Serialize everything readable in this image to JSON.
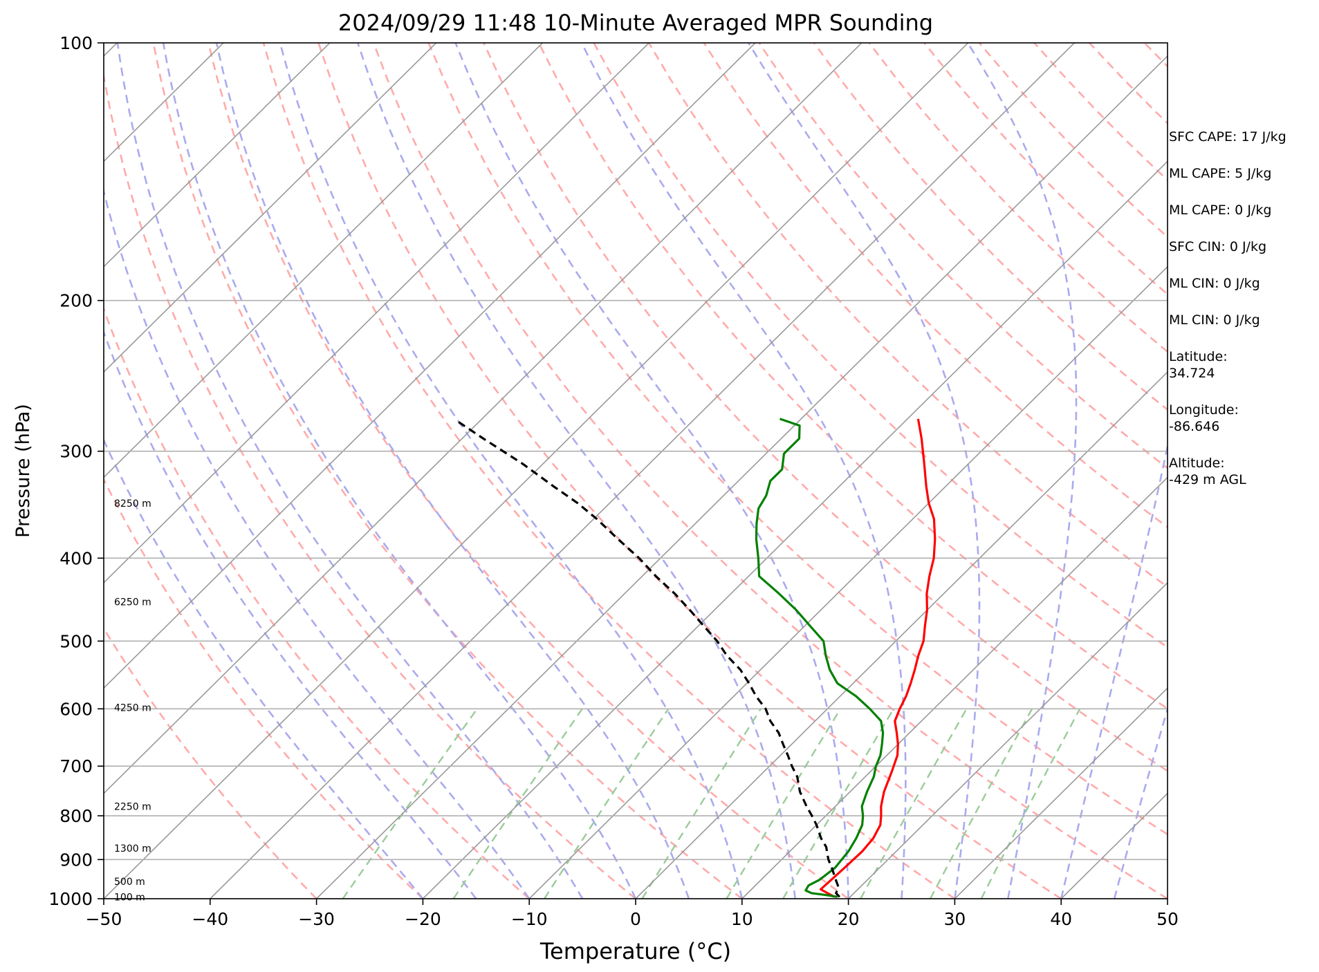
{
  "chart_data": {
    "type": "line",
    "title": "2024/09/29 11:48 10-Minute Averaged MPR Sounding",
    "xlabel": "Temperature (°C)",
    "ylabel": "Pressure (hPa)",
    "xlim": [
      -50,
      50
    ],
    "ylim": [
      1000,
      100
    ],
    "y_scale": "log",
    "skew_t": true,
    "grid": true,
    "x_ticks": [
      -50,
      -40,
      -30,
      -20,
      -10,
      0,
      10,
      20,
      30,
      40,
      50
    ],
    "y_ticks": [
      100,
      200,
      300,
      400,
      500,
      600,
      700,
      800,
      900,
      1000
    ],
    "x_tick_labels": [
      "−50",
      "−40",
      "−30",
      "−20",
      "−10",
      "0",
      "10",
      "20",
      "30",
      "40",
      "50"
    ],
    "y_tick_labels": [
      "100",
      "200",
      "300",
      "400",
      "500",
      "600",
      "700",
      "800",
      "900",
      "1000"
    ],
    "height_labels": [
      {
        "text": "8250 m",
        "p": 345
      },
      {
        "text": "6250 m",
        "p": 450
      },
      {
        "text": "4250 m",
        "p": 598
      },
      {
        "text": "2250 m",
        "p": 780
      },
      {
        "text": "1300 m",
        "p": 873
      },
      {
        "text": "500 m",
        "p": 955
      },
      {
        "text": "100 m",
        "p": 995
      }
    ],
    "colors": {
      "temperature": "#ff0000",
      "dewpoint": "#008000",
      "parcel": "#000000",
      "dry_adiabats": "#ffaaaa",
      "moist_adiabats": "#aaaaee",
      "mixing_ratio": "#99cc99",
      "isotherms": "#999999"
    },
    "series": [
      {
        "role": "temperature",
        "values": [
          [
            18.5,
            995
          ],
          [
            17.5,
            985
          ],
          [
            16.5,
            975
          ],
          [
            16.6,
            950
          ],
          [
            16.7,
            920
          ],
          [
            16.8,
            880
          ],
          [
            16.6,
            850
          ],
          [
            16.0,
            820
          ],
          [
            15.2,
            800
          ],
          [
            14.3,
            780
          ],
          [
            13.2,
            750
          ],
          [
            12.0,
            710
          ],
          [
            11.0,
            680
          ],
          [
            10.0,
            660
          ],
          [
            8.8,
            640
          ],
          [
            7.5,
            620
          ],
          [
            6.8,
            600
          ],
          [
            6.2,
            580
          ],
          [
            5.4,
            560
          ],
          [
            4.5,
            540
          ],
          [
            3.5,
            520
          ],
          [
            2.6,
            500
          ],
          [
            1.3,
            480
          ],
          [
            0.0,
            460
          ],
          [
            -1.6,
            440
          ],
          [
            -3.0,
            420
          ],
          [
            -4.3,
            400
          ],
          [
            -6.0,
            380
          ],
          [
            -8.0,
            360
          ],
          [
            -10.0,
            345
          ],
          [
            -11.8,
            330
          ],
          [
            -14.2,
            310
          ],
          [
            -16.8,
            290
          ],
          [
            -19.0,
            275
          ]
        ]
      },
      {
        "role": "dewpoint",
        "values": [
          [
            18.8,
            995
          ],
          [
            17.5,
            990
          ],
          [
            16.0,
            985
          ],
          [
            15.2,
            978
          ],
          [
            15.0,
            965
          ],
          [
            15.5,
            950
          ],
          [
            15.8,
            920
          ],
          [
            15.5,
            880
          ],
          [
            15.0,
            850
          ],
          [
            14.3,
            820
          ],
          [
            13.5,
            800
          ],
          [
            12.5,
            780
          ],
          [
            11.6,
            750
          ],
          [
            10.8,
            720
          ],
          [
            10.0,
            700
          ],
          [
            9.4,
            680
          ],
          [
            8.5,
            660
          ],
          [
            7.5,
            640
          ],
          [
            6.2,
            620
          ],
          [
            4.0,
            600
          ],
          [
            1.5,
            580
          ],
          [
            -1.5,
            560
          ],
          [
            -3.5,
            540
          ],
          [
            -5.2,
            520
          ],
          [
            -6.8,
            500
          ],
          [
            -9.5,
            480
          ],
          [
            -12.3,
            460
          ],
          [
            -15.5,
            440
          ],
          [
            -19.0,
            420
          ],
          [
            -20.8,
            400
          ],
          [
            -22.8,
            380
          ],
          [
            -24.2,
            365
          ],
          [
            -25.5,
            350
          ],
          [
            -26.0,
            338
          ],
          [
            -27.0,
            325
          ],
          [
            -27.0,
            315
          ],
          [
            -28.3,
            302
          ],
          [
            -28.3,
            290
          ],
          [
            -29.5,
            280
          ],
          [
            -32.0,
            275
          ]
        ]
      },
      {
        "role": "parcel",
        "values": [
          [
            19.0,
            995
          ],
          [
            18.3,
            985
          ],
          [
            18.0,
            970
          ],
          [
            17.0,
            950
          ],
          [
            15.5,
            920
          ],
          [
            14.4,
            900
          ],
          [
            13.0,
            870
          ],
          [
            11.7,
            850
          ],
          [
            10.0,
            820
          ],
          [
            8.7,
            800
          ],
          [
            7.3,
            780
          ],
          [
            5.3,
            750
          ],
          [
            3.6,
            720
          ],
          [
            2.1,
            700
          ],
          [
            0.7,
            680
          ],
          [
            -0.8,
            660
          ],
          [
            -2.3,
            640
          ],
          [
            -4.2,
            620
          ],
          [
            -5.8,
            600
          ],
          [
            -7.9,
            580
          ],
          [
            -9.8,
            560
          ],
          [
            -11.9,
            540
          ],
          [
            -14.5,
            520
          ],
          [
            -16.8,
            500
          ],
          [
            -19.5,
            480
          ],
          [
            -22.3,
            460
          ],
          [
            -25.3,
            440
          ],
          [
            -28.7,
            420
          ],
          [
            -32.0,
            400
          ],
          [
            -35.8,
            380
          ],
          [
            -39.7,
            360
          ],
          [
            -43.0,
            345
          ],
          [
            -46.8,
            330
          ],
          [
            -52.0,
            310
          ],
          [
            -58.0,
            290
          ],
          [
            -62.0,
            277
          ]
        ]
      }
    ]
  },
  "info": [
    "SFC CAPE: 17 J/kg",
    "ML CAPE: 5 J/kg",
    "ML CAPE: 0 J/kg",
    "SFC CIN: 0 J/kg",
    "ML CIN: 0 J/kg",
    "ML CIN: 0 J/kg",
    "Latitude:\n34.724",
    "Longitude:\n-86.646",
    "Altitude:\n-429 m AGL"
  ]
}
